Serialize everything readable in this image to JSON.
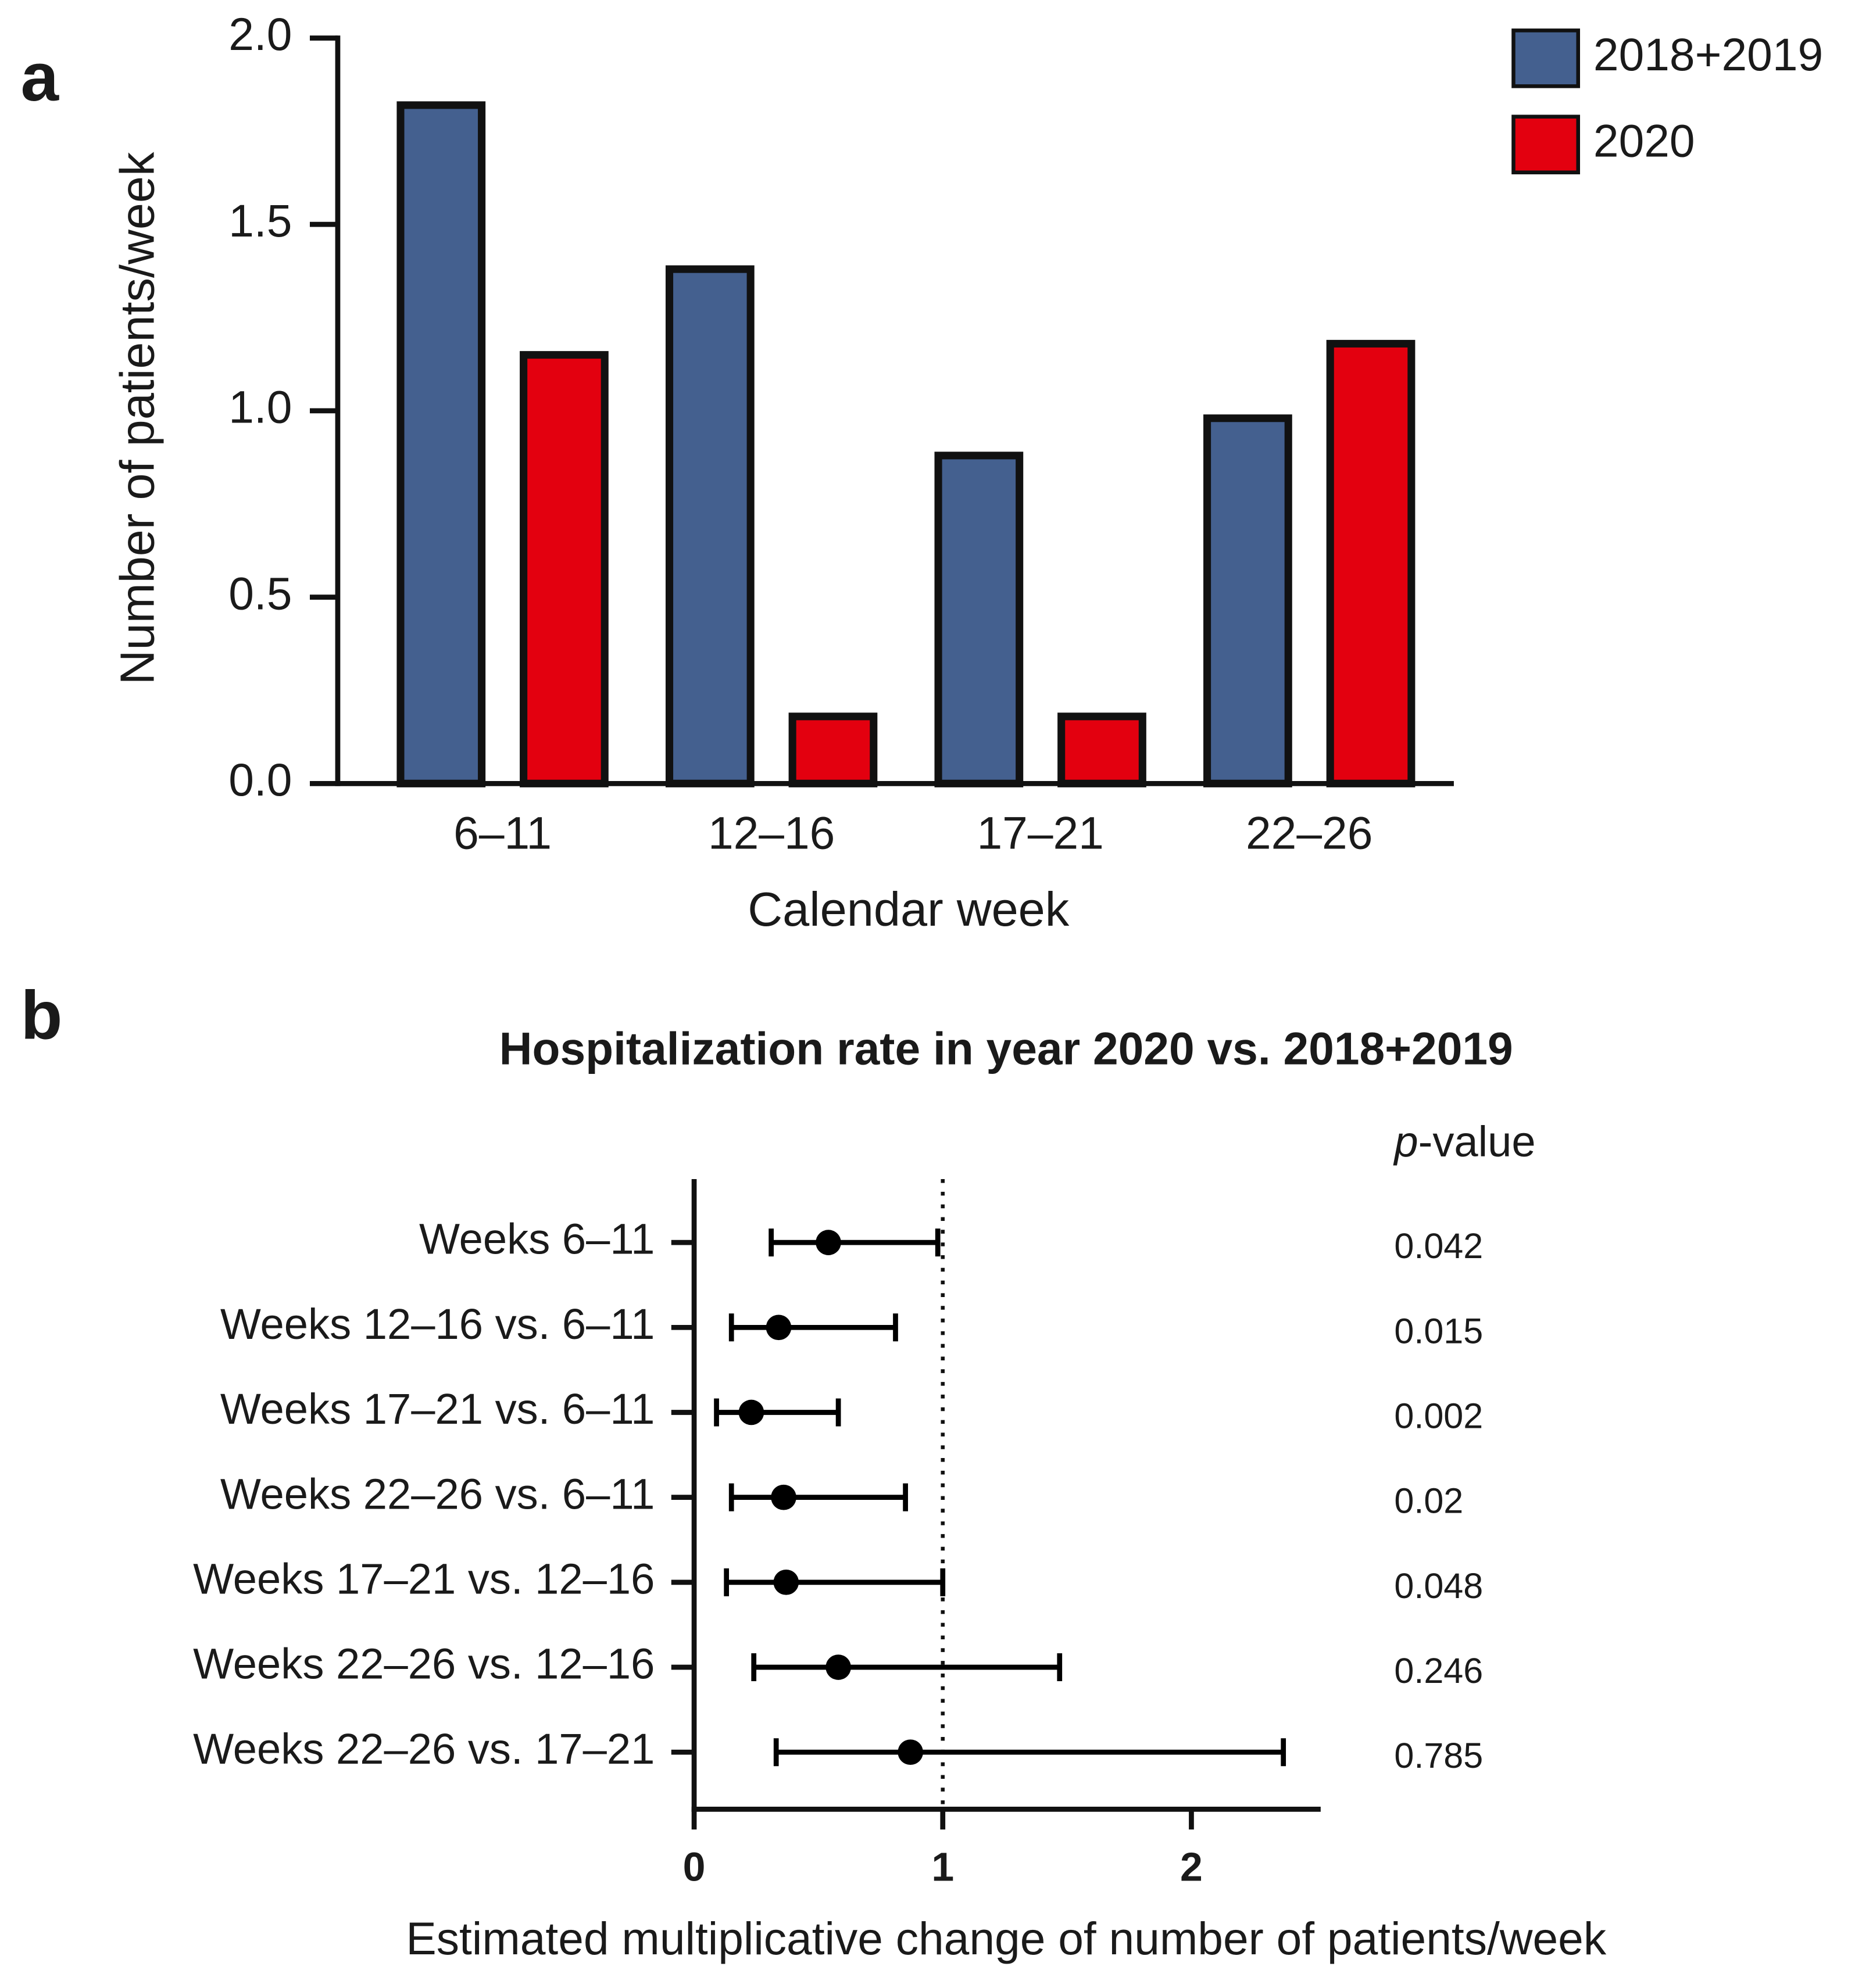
{
  "chart_data": [
    {
      "type": "bar",
      "panel": "a",
      "categories": [
        "6–11",
        "12–16",
        "17–21",
        "22–26"
      ],
      "series": [
        {
          "name": "2018+2019",
          "color": "#44608f",
          "values": [
            1.82,
            1.38,
            0.88,
            0.98
          ]
        },
        {
          "name": "2020",
          "color": "#e3000f",
          "values": [
            1.15,
            0.18,
            0.18,
            1.18
          ]
        }
      ],
      "xlabel": "Calendar week",
      "ylabel": "Number of patients/week",
      "ylim": [
        0,
        2
      ],
      "yticks": [
        {
          "value": 0,
          "label": "0.0"
        },
        {
          "value": 0.5,
          "label": "0.5"
        },
        {
          "value": 1,
          "label": "1.0"
        },
        {
          "value": 1.5,
          "label": "1.5"
        },
        {
          "value": 2,
          "label": "2.0"
        }
      ],
      "legend": "top-right"
    },
    {
      "type": "forest",
      "panel": "b",
      "title": "Hospitalization rate in year 2020 vs. 2018+2019",
      "categories": [
        "Weeks 6–11",
        "Weeks 12–16 vs. 6–11",
        "Weeks 17–21 vs. 6–11",
        "Weeks 22–26 vs. 6–11",
        "Weeks 17–21 vs. 12–16",
        "Weeks 22–26 vs. 12–16",
        "Weeks 22–26 vs. 17–21"
      ],
      "values": [
        0.54,
        0.34,
        0.23,
        0.36,
        0.37,
        0.58,
        0.87
      ],
      "lower": [
        0.31,
        0.15,
        0.09,
        0.15,
        0.13,
        0.24,
        0.33
      ],
      "upper": [
        0.98,
        0.81,
        0.58,
        0.85,
        1.0,
        1.47,
        2.37
      ],
      "p_value_header": "p-value",
      "p_values": [
        0.042,
        0.015,
        0.002,
        0.02,
        0.048,
        0.246,
        0.785
      ],
      "xlabel": "Estimated multiplicative change of number of patients/week",
      "xlim": [
        0,
        2.52
      ],
      "xticks": [
        0,
        1,
        2
      ],
      "reference_line": 1,
      "color": "#000000"
    }
  ]
}
